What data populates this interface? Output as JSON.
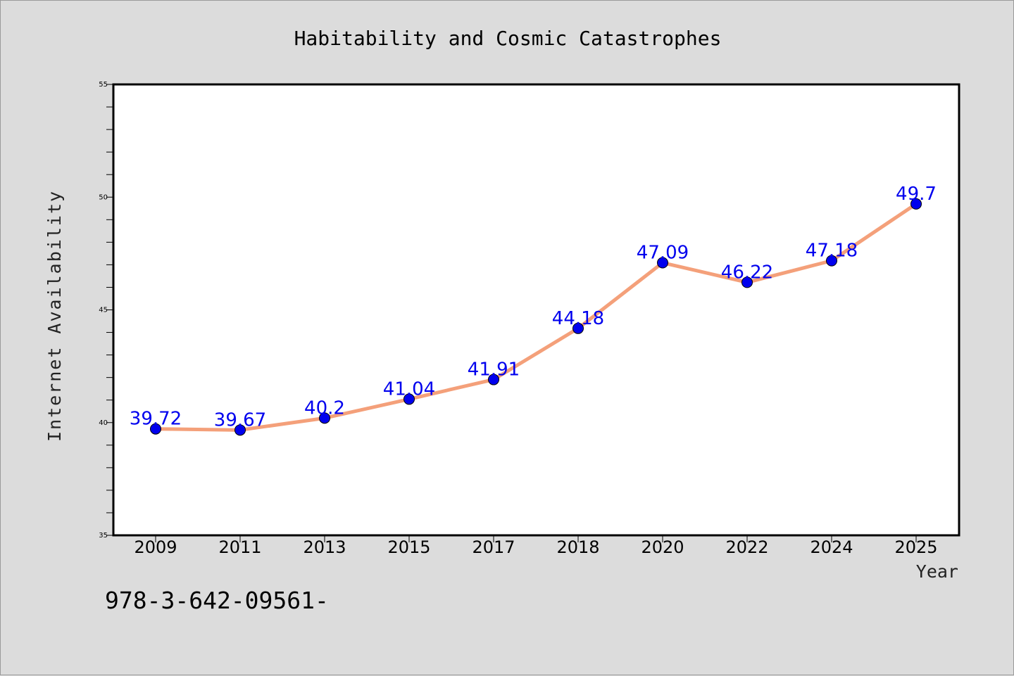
{
  "chart_data": {
    "type": "line",
    "title": "Habitability and Cosmic Catastrophes",
    "xlabel": "Year",
    "ylabel": "Internet Availability",
    "categories": [
      "2009",
      "2011",
      "2013",
      "2015",
      "2017",
      "2018",
      "2020",
      "2022",
      "2024",
      "2025"
    ],
    "series": [
      {
        "values": [
          39.72,
          39.67,
          40.2,
          41.04,
          41.91,
          44.18,
          47.09,
          46.22,
          47.18,
          49.7
        ],
        "labels": [
          "39.72",
          "39.67",
          "40.2",
          "41.04",
          "41.91",
          "44.18",
          "47.09",
          "46.22",
          "47.18",
          "49.7"
        ],
        "line_color": "#f4a07a",
        "marker_color": "#0000ee",
        "label_color": "#0000ee"
      }
    ],
    "ylim": [
      35,
      55
    ],
    "yticks": [
      "35",
      "40",
      "45",
      "50",
      "55"
    ],
    "grid": false
  },
  "footer": {
    "text": "978-3-642-09561-"
  }
}
